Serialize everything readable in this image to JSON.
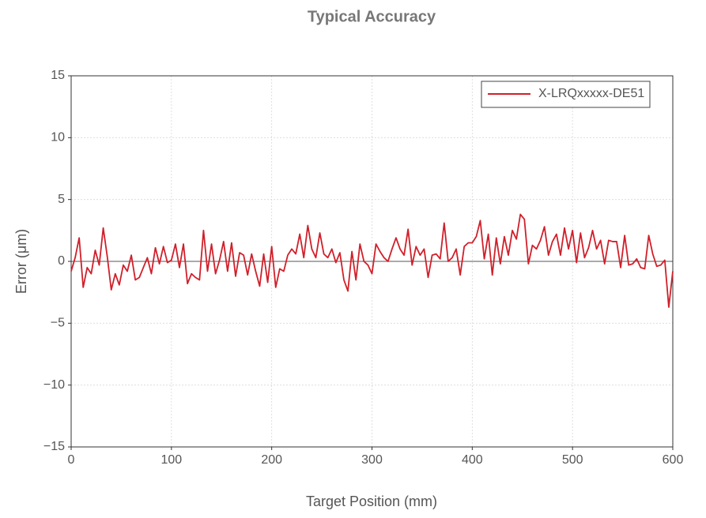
{
  "chart_data": {
    "type": "line",
    "title": "Typical Accuracy",
    "x_label": "Target Position (mm)",
    "y_label": "Error (μm)",
    "x": [
      0,
      4,
      8,
      12,
      16,
      20,
      24,
      28,
      32,
      36,
      40,
      44,
      48,
      52,
      56,
      60,
      64,
      68,
      72,
      76,
      80,
      84,
      88,
      92,
      96,
      100,
      104,
      108,
      112,
      116,
      120,
      124,
      128,
      132,
      136,
      140,
      144,
      148,
      152,
      156,
      160,
      164,
      168,
      172,
      176,
      180,
      184,
      188,
      192,
      196,
      200,
      204,
      208,
      212,
      216,
      220,
      224,
      228,
      232,
      236,
      240,
      244,
      248,
      252,
      256,
      260,
      264,
      268,
      272,
      276,
      280,
      284,
      288,
      292,
      296,
      300,
      304,
      308,
      312,
      316,
      320,
      324,
      328,
      332,
      336,
      340,
      344,
      348,
      352,
      356,
      360,
      364,
      368,
      372,
      376,
      380,
      384,
      388,
      392,
      396,
      400,
      404,
      408,
      412,
      416,
      420,
      424,
      428,
      432,
      436,
      440,
      444,
      448,
      452,
      456,
      460,
      464,
      468,
      472,
      476,
      480,
      484,
      488,
      492,
      496,
      500,
      504,
      508,
      512,
      516,
      520,
      524,
      528,
      532,
      536,
      540,
      544,
      548,
      552,
      556,
      560,
      564,
      568,
      572,
      576,
      580,
      584,
      588,
      592,
      596,
      600
    ],
    "series": [
      {
        "name": "X-LRQxxxxx-DE51",
        "color": "#d0202a",
        "values": [
          -0.8,
          0.3,
          1.9,
          -2.1,
          -0.5,
          -1.0,
          0.9,
          -0.3,
          2.7,
          0.4,
          -2.3,
          -1.0,
          -1.9,
          -0.3,
          -0.8,
          0.5,
          -1.5,
          -1.3,
          -0.5,
          0.3,
          -1.0,
          1.1,
          -0.2,
          1.2,
          -0.1,
          0.1,
          1.4,
          -0.5,
          1.4,
          -1.8,
          -1.0,
          -1.3,
          -1.5,
          2.5,
          -0.8,
          1.4,
          -1.0,
          0.1,
          1.6,
          -0.8,
          1.5,
          -1.2,
          0.7,
          0.5,
          -1.1,
          0.6,
          -0.8,
          -2.0,
          0.6,
          -1.7,
          1.2,
          -2.1,
          -0.6,
          -0.8,
          0.5,
          1.0,
          0.6,
          2.2,
          0.3,
          2.9,
          1.0,
          0.3,
          2.3,
          0.6,
          0.3,
          1.0,
          -0.1,
          0.7,
          -1.5,
          -2.4,
          0.8,
          -1.5,
          1.4,
          0.0,
          -0.3,
          -1.0,
          1.4,
          0.8,
          0.3,
          0.0,
          1.0,
          1.9,
          1.0,
          0.5,
          2.6,
          -0.3,
          1.2,
          0.5,
          1.0,
          -1.3,
          0.5,
          0.6,
          0.2,
          3.1,
          0.0,
          0.3,
          1.0,
          -1.1,
          1.2,
          1.5,
          1.5,
          2.0,
          3.3,
          0.2,
          2.2,
          -1.1,
          1.9,
          -0.2,
          2.0,
          0.5,
          2.5,
          1.8,
          3.8,
          3.4,
          -0.2,
          1.3,
          1.0,
          1.7,
          2.8,
          0.5,
          1.6,
          2.2,
          0.5,
          2.7,
          1.0,
          2.5,
          -0.1,
          2.3,
          0.3,
          1.1,
          2.5,
          1.0,
          1.7,
          -0.2,
          1.7,
          1.6,
          1.6,
          -0.5,
          2.1,
          -0.3,
          -0.2,
          0.2,
          -0.5,
          -0.6,
          2.1,
          0.6,
          -0.4,
          -0.3,
          0.1,
          -3.7,
          -0.8
        ]
      }
    ],
    "xlim": [
      0,
      600
    ],
    "xticks": [
      0,
      100,
      200,
      300,
      400,
      500,
      600
    ],
    "ylim": [
      -15,
      15
    ],
    "yticks": [
      {
        "value": -15,
        "label": "−15"
      },
      {
        "value": -10,
        "label": "−10"
      },
      {
        "value": -5,
        "label": "−5"
      },
      0,
      5,
      10,
      15
    ],
    "hline": 0,
    "grid": true,
    "legend": "upper right"
  }
}
